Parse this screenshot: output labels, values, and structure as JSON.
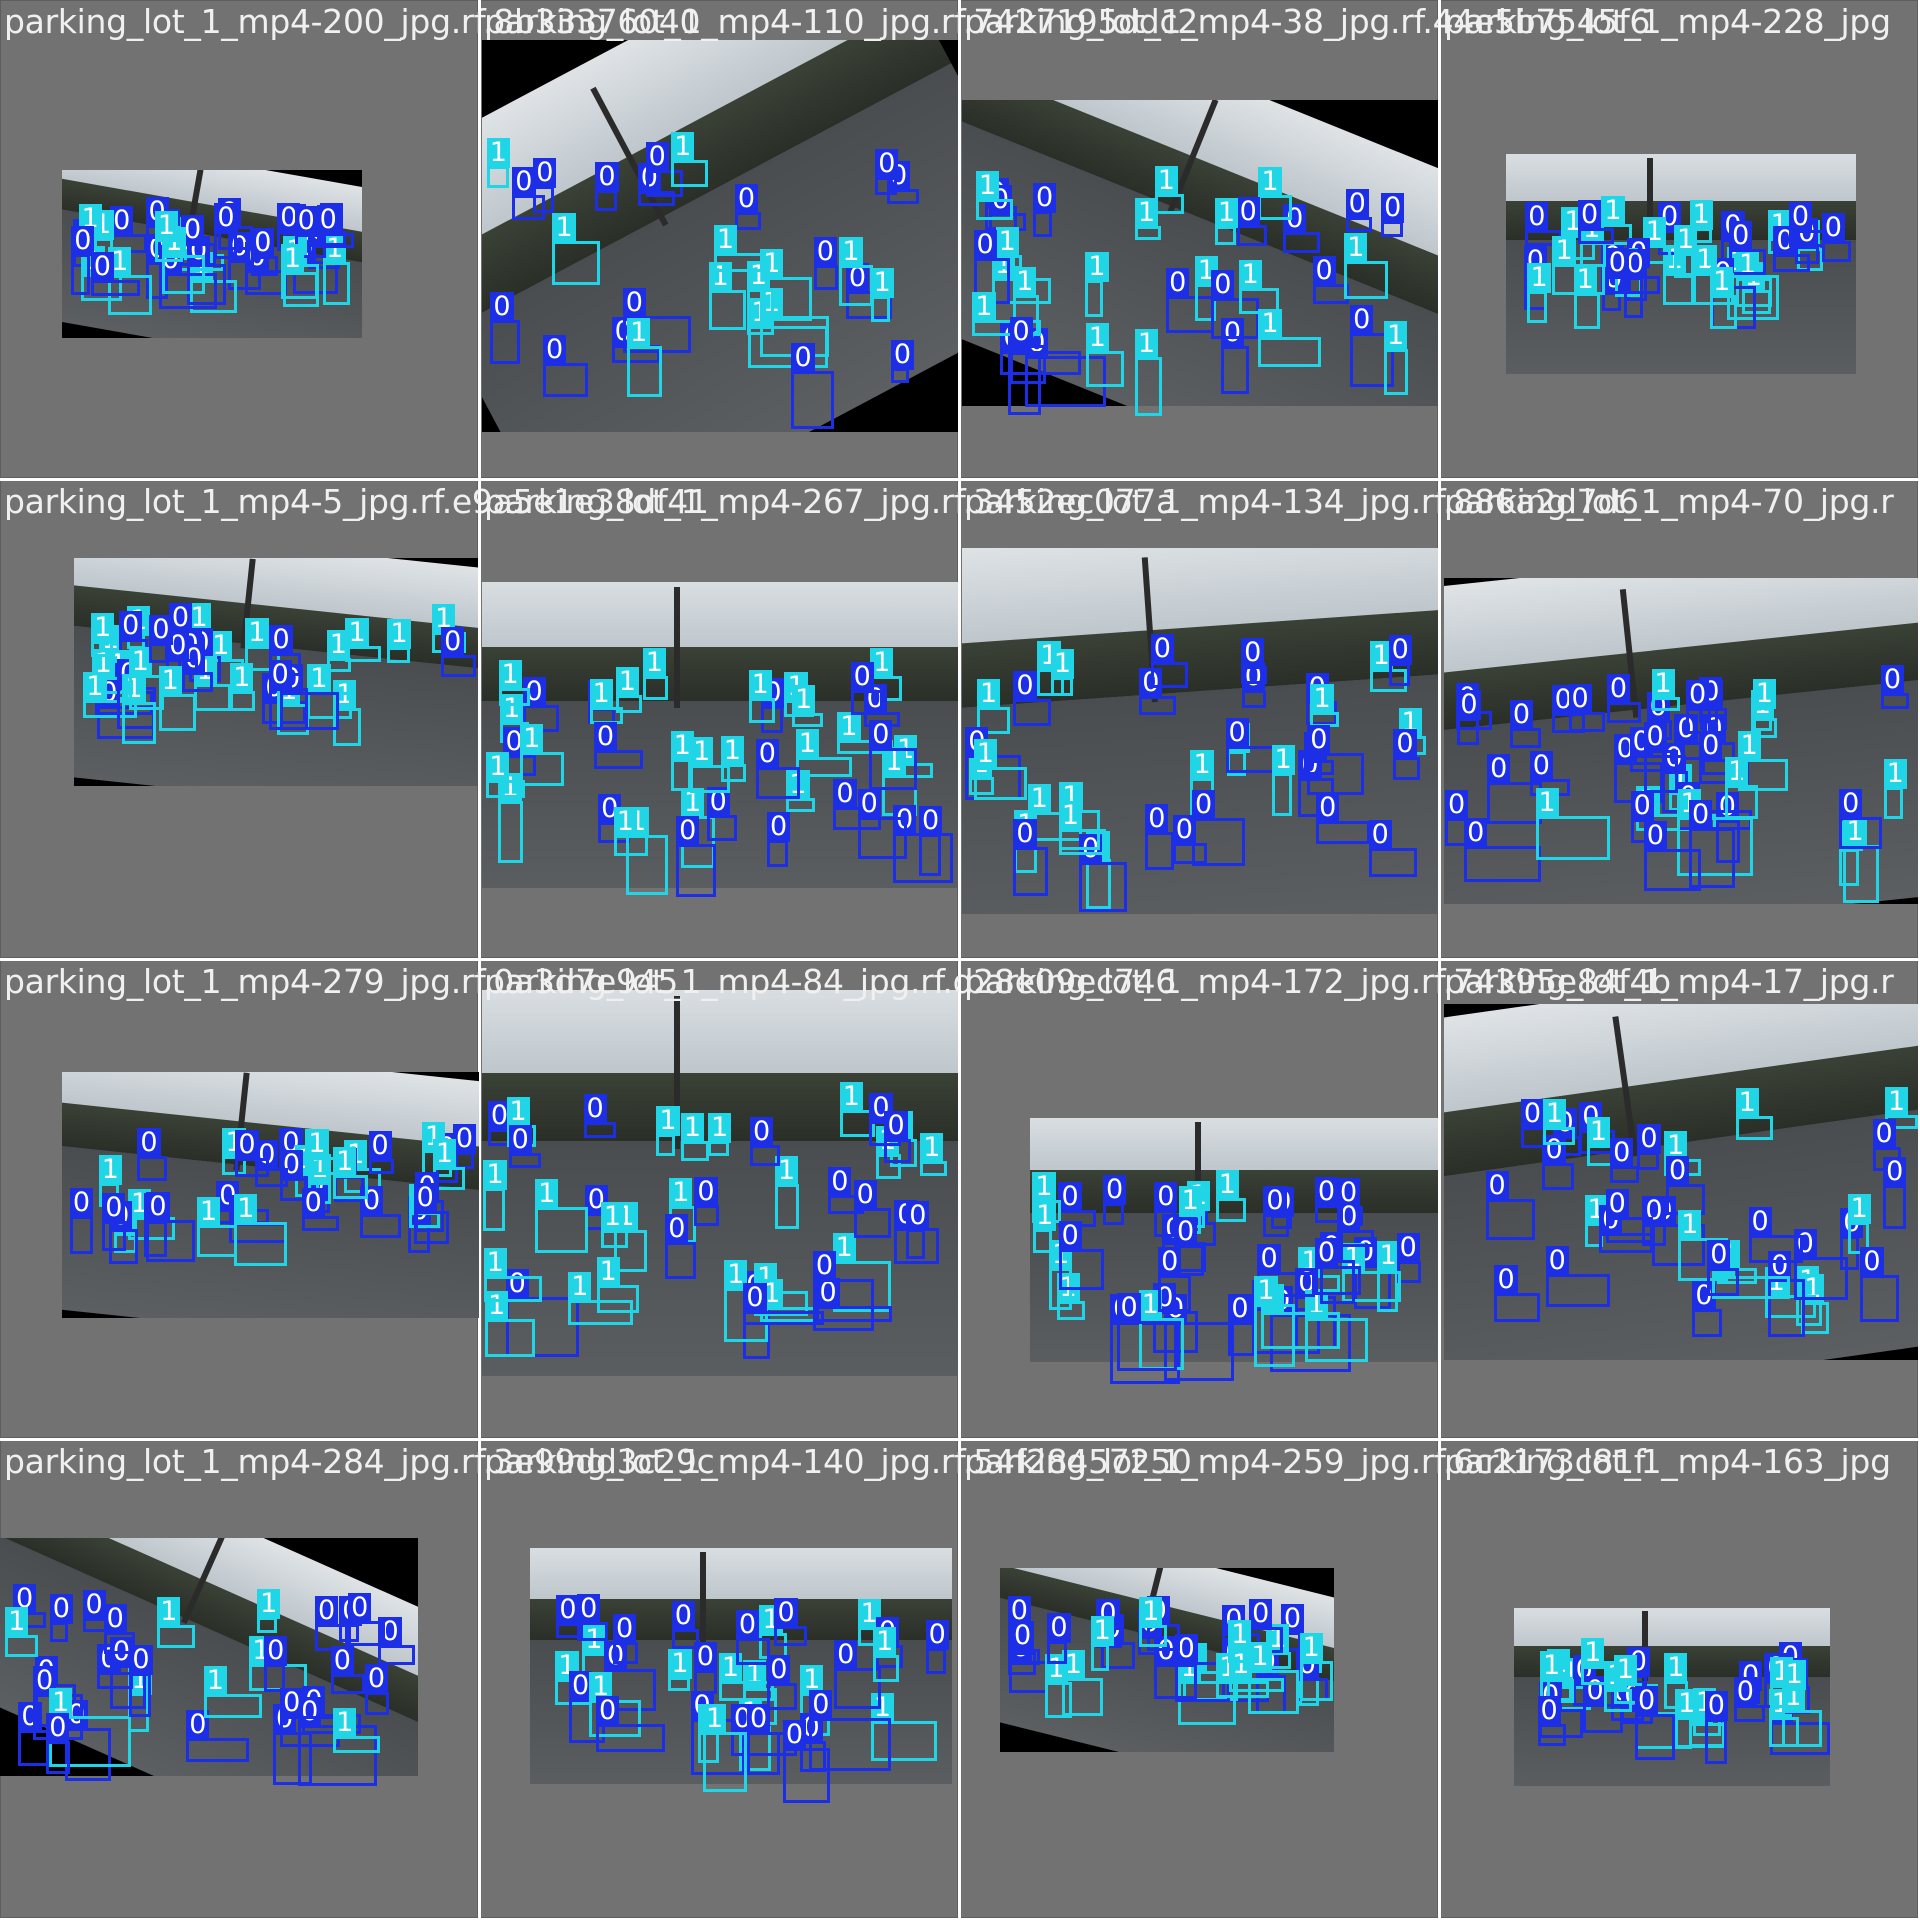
{
  "colors": {
    "class0": "#1c2ee6",
    "class1": "#20d6e6",
    "tile_bg": "#727272",
    "caption": "#f0f0f0"
  },
  "tiles": [
    {
      "caption": "parking_lot_1_mp4-200_jpg.rf.8b33376040",
      "rows": 2,
      "boxes": 34
    },
    {
      "caption": "parking_lot_1_mp4-110_jpg.rf.7427195ddc2",
      "rows": 3,
      "boxes": 28
    },
    {
      "caption": "parking_lot_1_mp4-38_jpg.rf.44e5b7545f6",
      "rows": 3,
      "boxes": 34
    },
    {
      "caption": "parking_lot_1_mp4-228_jpg",
      "rows": 2,
      "boxes": 34
    },
    {
      "caption": "parking_lot_1_mp4-5_jpg.rf.e9a5e1e38df41",
      "rows": 2,
      "boxes": 36
    },
    {
      "caption": "parking_lot_1_mp4-267_jpg.rf.3452ec077a",
      "rows": 3,
      "boxes": 40
    },
    {
      "caption": "parking_lot_1_mp4-134_jpg.rf.886a2d7d6",
      "rows": 3,
      "boxes": 36
    },
    {
      "caption": "parking_lot_1_mp4-70_jpg.r",
      "rows": 3,
      "boxes": 40
    },
    {
      "caption": "parking_lot_1_mp4-279_jpg.rf.0a3d7e945",
      "rows": 2,
      "boxes": 36
    },
    {
      "caption": "parking_lot_1_mp4-84_jpg.rf.d28e09ec746",
      "rows": 3,
      "boxes": 40
    },
    {
      "caption": "parking_lot_1_mp4-172_jpg.rf.74395e84f4b",
      "rows": 3,
      "boxes": 40
    },
    {
      "caption": "parking_lot_1_mp4-17_jpg.r",
      "rows": 3,
      "boxes": 36
    },
    {
      "caption": "parking_lot_1_mp4-284_jpg.rf.3e99dd3c29c",
      "rows": 3,
      "boxes": 32
    },
    {
      "caption": "parking_lot_1_mp4-140_jpg.rf.54f28457250",
      "rows": 3,
      "boxes": 34
    },
    {
      "caption": "parking_lot_1_mp4-259_jpg.rf.6c2173c81f",
      "rows": 2,
      "boxes": 30
    },
    {
      "caption": "parking_lot_1_mp4-163_jpg",
      "rows": 2,
      "boxes": 30
    }
  ],
  "class_labels": [
    "0",
    "1"
  ]
}
